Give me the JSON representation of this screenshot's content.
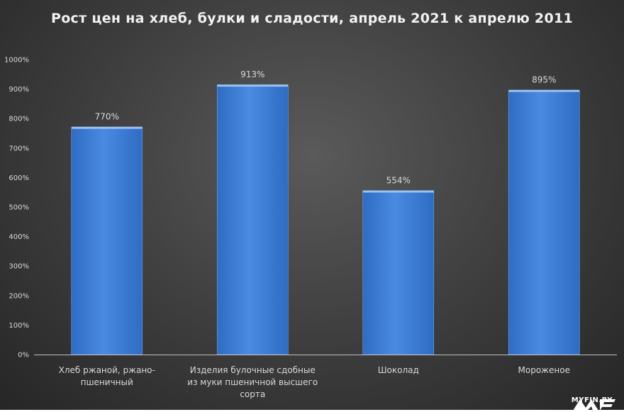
{
  "chart_data": {
    "type": "bar",
    "title": "Рост цен на хлеб, булки и сладости, апрель 2021 к апрелю 2011",
    "categories": [
      [
        "Хлеб ржаной, ржано-",
        "пшеничный"
      ],
      [
        "Изделия булочные сдобные",
        "из муки пшеничной высшего",
        "сорта"
      ],
      [
        "Шоколад"
      ],
      [
        "Мороженое"
      ]
    ],
    "values": [
      770,
      913,
      554,
      895
    ],
    "data_labels": [
      "770%",
      "913%",
      "554%",
      "895%"
    ],
    "yticks": [
      "0%",
      "100%",
      "200%",
      "300%",
      "400%",
      "500%",
      "600%",
      "700%",
      "800%",
      "900%",
      "1000%"
    ],
    "ylim": [
      0,
      1000
    ],
    "grid": false,
    "bar_color": "#3f7fd6",
    "text_color": "#d9d9d9",
    "axis_color": "#bfbfbf"
  },
  "watermark": {
    "text": "MYFIN.BY"
  }
}
